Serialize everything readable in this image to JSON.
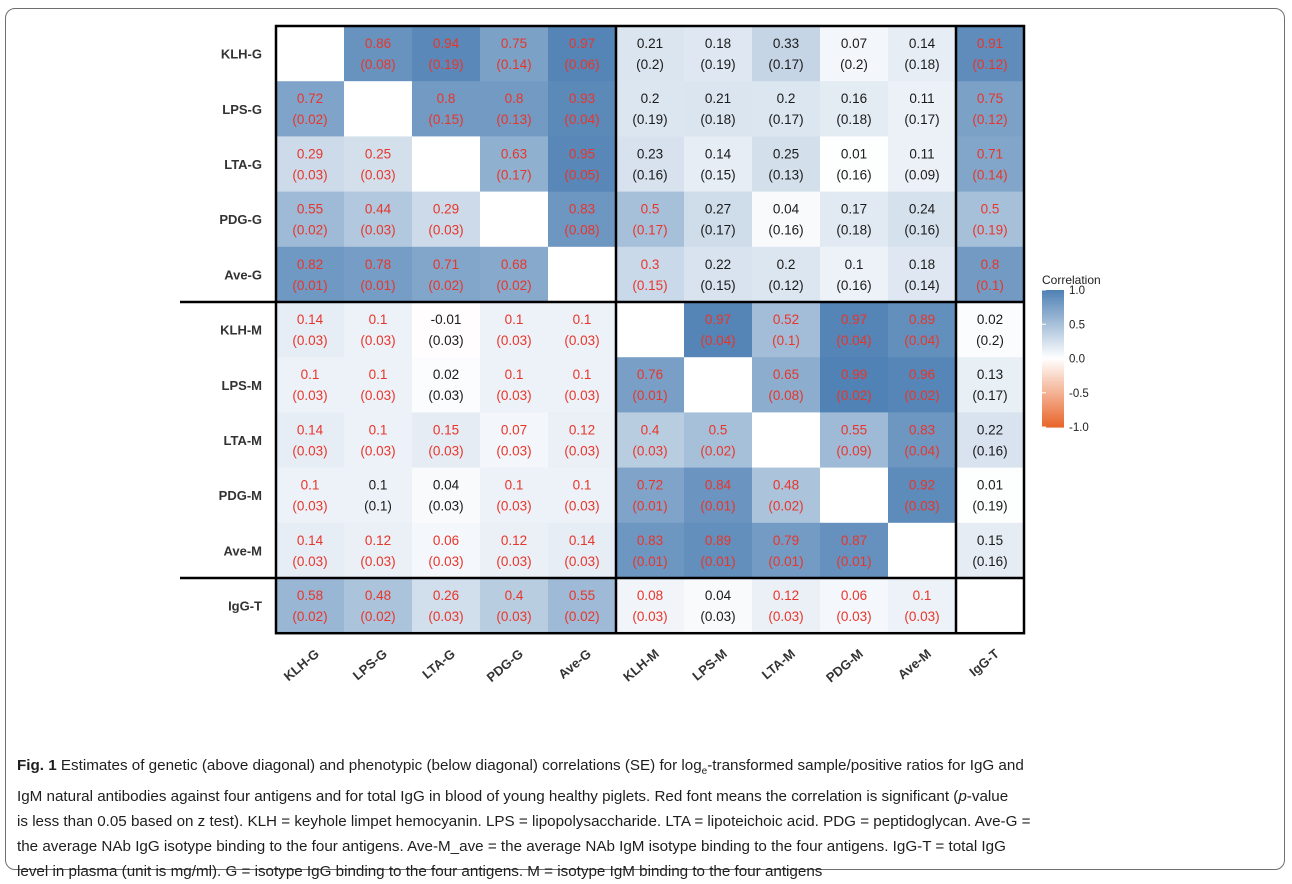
{
  "chart_data": {
    "type": "heatmap",
    "row_labels": [
      "KLH-G",
      "LPS-G",
      "LTA-G",
      "PDG-G",
      "Ave-G",
      "KLH-M",
      "LPS-M",
      "LTA-M",
      "PDG-M",
      "Ave-M",
      "IgG-T"
    ],
    "col_labels": [
      "KLH-G",
      "LPS-G",
      "LTA-G",
      "PDG-G",
      "Ave-G",
      "KLH-M",
      "LPS-M",
      "LTA-M",
      "PDG-M",
      "Ave-M",
      "IgG-T"
    ],
    "cells": [
      [
        null,
        {
          "r": "0.86",
          "se": "(0.08)",
          "sig": true
        },
        {
          "r": "0.94",
          "se": "(0.19)",
          "sig": true
        },
        {
          "r": "0.75",
          "se": "(0.14)",
          "sig": true
        },
        {
          "r": "0.97",
          "se": "(0.06)",
          "sig": true
        },
        {
          "r": "0.21",
          "se": "(0.2)",
          "sig": false
        },
        {
          "r": "0.18",
          "se": "(0.19)",
          "sig": false
        },
        {
          "r": "0.33",
          "se": "(0.17)",
          "sig": false
        },
        {
          "r": "0.07",
          "se": "(0.2)",
          "sig": false
        },
        {
          "r": "0.14",
          "se": "(0.18)",
          "sig": false
        },
        {
          "r": "0.91",
          "se": "(0.12)",
          "sig": true
        }
      ],
      [
        {
          "r": "0.72",
          "se": "(0.02)",
          "sig": true
        },
        null,
        {
          "r": "0.8",
          "se": "(0.15)",
          "sig": true
        },
        {
          "r": "0.8",
          "se": "(0.13)",
          "sig": true
        },
        {
          "r": "0.93",
          "se": "(0.04)",
          "sig": true
        },
        {
          "r": "0.2",
          "se": "(0.19)",
          "sig": false
        },
        {
          "r": "0.21",
          "se": "(0.18)",
          "sig": false
        },
        {
          "r": "0.2",
          "se": "(0.17)",
          "sig": false
        },
        {
          "r": "0.16",
          "se": "(0.18)",
          "sig": false
        },
        {
          "r": "0.11",
          "se": "(0.17)",
          "sig": false
        },
        {
          "r": "0.75",
          "se": "(0.12)",
          "sig": true
        }
      ],
      [
        {
          "r": "0.29",
          "se": "(0.03)",
          "sig": true
        },
        {
          "r": "0.25",
          "se": "(0.03)",
          "sig": true
        },
        null,
        {
          "r": "0.63",
          "se": "(0.17)",
          "sig": true
        },
        {
          "r": "0.95",
          "se": "(0.05)",
          "sig": true
        },
        {
          "r": "0.23",
          "se": "(0.16)",
          "sig": false
        },
        {
          "r": "0.14",
          "se": "(0.15)",
          "sig": false
        },
        {
          "r": "0.25",
          "se": "(0.13)",
          "sig": false
        },
        {
          "r": "0.01",
          "se": "(0.16)",
          "sig": false
        },
        {
          "r": "0.11",
          "se": "(0.09)",
          "sig": false
        },
        {
          "r": "0.71",
          "se": "(0.14)",
          "sig": true
        }
      ],
      [
        {
          "r": "0.55",
          "se": "(0.02)",
          "sig": true
        },
        {
          "r": "0.44",
          "se": "(0.03)",
          "sig": true
        },
        {
          "r": "0.29",
          "se": "(0.03)",
          "sig": true
        },
        null,
        {
          "r": "0.83",
          "se": "(0.08)",
          "sig": true
        },
        {
          "r": "0.5",
          "se": "(0.17)",
          "sig": true
        },
        {
          "r": "0.27",
          "se": "(0.17)",
          "sig": false
        },
        {
          "r": "0.04",
          "se": "(0.16)",
          "sig": false
        },
        {
          "r": "0.17",
          "se": "(0.18)",
          "sig": false
        },
        {
          "r": "0.24",
          "se": "(0.16)",
          "sig": false
        },
        {
          "r": "0.5",
          "se": "(0.19)",
          "sig": true
        }
      ],
      [
        {
          "r": "0.82",
          "se": "(0.01)",
          "sig": true
        },
        {
          "r": "0.78",
          "se": "(0.01)",
          "sig": true
        },
        {
          "r": "0.71",
          "se": "(0.02)",
          "sig": true
        },
        {
          "r": "0.68",
          "se": "(0.02)",
          "sig": true
        },
        null,
        {
          "r": "0.3",
          "se": "(0.15)",
          "sig": true
        },
        {
          "r": "0.22",
          "se": "(0.15)",
          "sig": false
        },
        {
          "r": "0.2",
          "se": "(0.12)",
          "sig": false
        },
        {
          "r": "0.1",
          "se": "(0.16)",
          "sig": false
        },
        {
          "r": "0.18",
          "se": "(0.14)",
          "sig": false
        },
        {
          "r": "0.8",
          "se": "(0.1)",
          "sig": true
        }
      ],
      [
        {
          "r": "0.14",
          "se": "(0.03)",
          "sig": true
        },
        {
          "r": "0.1",
          "se": "(0.03)",
          "sig": true
        },
        {
          "r": "-0.01",
          "se": "(0.03)",
          "sig": false
        },
        {
          "r": "0.1",
          "se": "(0.03)",
          "sig": true
        },
        {
          "r": "0.1",
          "se": "(0.03)",
          "sig": true
        },
        null,
        {
          "r": "0.97",
          "se": "(0.04)",
          "sig": true
        },
        {
          "r": "0.52",
          "se": "(0.1)",
          "sig": true
        },
        {
          "r": "0.97",
          "se": "(0.04)",
          "sig": true
        },
        {
          "r": "0.89",
          "se": "(0.04)",
          "sig": true
        },
        {
          "r": "0.02",
          "se": "(0.2)",
          "sig": false
        }
      ],
      [
        {
          "r": "0.1",
          "se": "(0.03)",
          "sig": true
        },
        {
          "r": "0.1",
          "se": "(0.03)",
          "sig": true
        },
        {
          "r": "0.02",
          "se": "(0.03)",
          "sig": false
        },
        {
          "r": "0.1",
          "se": "(0.03)",
          "sig": true
        },
        {
          "r": "0.1",
          "se": "(0.03)",
          "sig": true
        },
        {
          "r": "0.76",
          "se": "(0.01)",
          "sig": true
        },
        null,
        {
          "r": "0.65",
          "se": "(0.08)",
          "sig": true
        },
        {
          "r": "0.99",
          "se": "(0.02)",
          "sig": true
        },
        {
          "r": "0.96",
          "se": "(0.02)",
          "sig": true
        },
        {
          "r": "0.13",
          "se": "(0.17)",
          "sig": false
        }
      ],
      [
        {
          "r": "0.14",
          "se": "(0.03)",
          "sig": true
        },
        {
          "r": "0.1",
          "se": "(0.03)",
          "sig": true
        },
        {
          "r": "0.15",
          "se": "(0.03)",
          "sig": true
        },
        {
          "r": "0.07",
          "se": "(0.03)",
          "sig": true
        },
        {
          "r": "0.12",
          "se": "(0.03)",
          "sig": true
        },
        {
          "r": "0.4",
          "se": "(0.03)",
          "sig": true
        },
        {
          "r": "0.5",
          "se": "(0.02)",
          "sig": true
        },
        null,
        {
          "r": "0.55",
          "se": "(0.09)",
          "sig": true
        },
        {
          "r": "0.83",
          "se": "(0.04)",
          "sig": true
        },
        {
          "r": "0.22",
          "se": "(0.16)",
          "sig": false
        }
      ],
      [
        {
          "r": "0.1",
          "se": "(0.03)",
          "sig": true
        },
        {
          "r": "0.1",
          "se": "(0.1)",
          "sig": false
        },
        {
          "r": "0.04",
          "se": "(0.03)",
          "sig": false
        },
        {
          "r": "0.1",
          "se": "(0.03)",
          "sig": true
        },
        {
          "r": "0.1",
          "se": "(0.03)",
          "sig": true
        },
        {
          "r": "0.72",
          "se": "(0.01)",
          "sig": true
        },
        {
          "r": "0.84",
          "se": "(0.01)",
          "sig": true
        },
        {
          "r": "0.48",
          "se": "(0.02)",
          "sig": true
        },
        null,
        {
          "r": "0.92",
          "se": "(0.03)",
          "sig": true
        },
        {
          "r": "0.01",
          "se": "(0.19)",
          "sig": false
        }
      ],
      [
        {
          "r": "0.14",
          "se": "(0.03)",
          "sig": true
        },
        {
          "r": "0.12",
          "se": "(0.03)",
          "sig": true
        },
        {
          "r": "0.06",
          "se": "(0.03)",
          "sig": true
        },
        {
          "r": "0.12",
          "se": "(0.03)",
          "sig": true
        },
        {
          "r": "0.14",
          "se": "(0.03)",
          "sig": true
        },
        {
          "r": "0.83",
          "se": "(0.01)",
          "sig": true
        },
        {
          "r": "0.89",
          "se": "(0.01)",
          "sig": true
        },
        {
          "r": "0.79",
          "se": "(0.01)",
          "sig": true
        },
        {
          "r": "0.87",
          "se": "(0.01)",
          "sig": true
        },
        null,
        {
          "r": "0.15",
          "se": "(0.16)",
          "sig": false
        }
      ],
      [
        {
          "r": "0.58",
          "se": "(0.02)",
          "sig": true
        },
        {
          "r": "0.48",
          "se": "(0.02)",
          "sig": true
        },
        {
          "r": "0.26",
          "se": "(0.03)",
          "sig": true
        },
        {
          "r": "0.4",
          "se": "(0.03)",
          "sig": true
        },
        {
          "r": "0.55",
          "se": "(0.02)",
          "sig": true
        },
        {
          "r": "0.08",
          "se": "(0.03)",
          "sig": true
        },
        {
          "r": "0.04",
          "se": "(0.03)",
          "sig": false
        },
        {
          "r": "0.12",
          "se": "(0.03)",
          "sig": true
        },
        {
          "r": "0.06",
          "se": "(0.03)",
          "sig": true
        },
        {
          "r": "0.1",
          "se": "(0.03)",
          "sig": true
        },
        null
      ]
    ],
    "group_breaks": [
      5,
      10
    ],
    "legend": {
      "title": "Correlation",
      "ticks": [
        "1.0",
        "0.5",
        "0.0",
        "-0.5",
        "-1.0"
      ],
      "range": [
        -1,
        1
      ],
      "placement": "right",
      "high_color": "#4f81b4",
      "mid_color": "#ffffff",
      "low_color": "#e8652a"
    },
    "significant_color": "#e8352a",
    "nonsignificant_color": "#1a1a1a"
  },
  "caption": {
    "fig_label": "Fig. 1",
    "line1_a": " Estimates of genetic (above diagonal) and phenotypic (below diagonal) correlations (SE) for log",
    "line1_sub": "e",
    "line1_b": "-transformed sample/positive ratios for IgG and",
    "line2": "IgM natural antibodies against four antigens and for total IgG in blood of young healthy piglets. Red font means the correlation is significant (",
    "line2_italic": "p",
    "line2_end": "-value",
    "line3": "is less than 0.05 based on z test). KLH = keyhole limpet hemocyanin. LPS = lipopolysaccharide. LTA = lipoteichoic acid. PDG = peptidoglycan. Ave-G =",
    "line4": "the average NAb IgG isotype binding to the four antigens. Ave-M_ave = the average NAb IgM isotype binding to the four antigens. IgG-T = total IgG",
    "line5": "level in plasma (unit is mg/ml). G = isotype IgG binding to the four antigens. M = isotype IgM binding to the four antigens"
  }
}
